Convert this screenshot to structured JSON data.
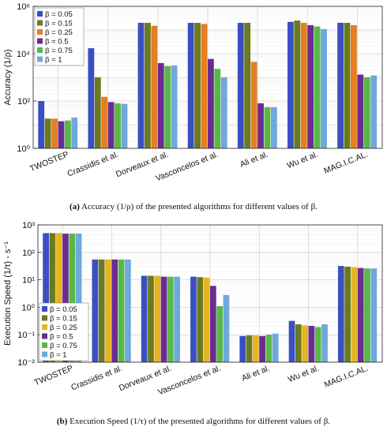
{
  "colors": [
    "#3a4fc2",
    "#6b7a1e",
    "#e67e22",
    "#e6b422",
    "#6a2c91",
    "#59b845",
    "#6fa8dc"
  ],
  "chart_data": [
    {
      "id": "a",
      "type": "bar",
      "log_y": true,
      "ylim": [
        1,
        1000000
      ],
      "ylabel": "Accuracy (1/ρ)",
      "yticks": [
        "10⁰",
        "10²",
        "10⁴",
        "10⁶"
      ],
      "ytick_values": [
        1,
        100,
        10000,
        1000000
      ],
      "categories": [
        "TWOSTEP",
        "Crassidis et al.",
        "Dorveaux et al.",
        "Vasconcelos et al.",
        "Ali et al.",
        "Wu et al.",
        "MAG.I.C.AL."
      ],
      "series": [
        {
          "name": "β = 0.05",
          "color_index": 0,
          "values": [
            100,
            17000,
            200000,
            200000,
            200000,
            220000,
            200000
          ]
        },
        {
          "name": "β = 0.15",
          "color_index": 1,
          "values": [
            18,
            1000,
            200000,
            200000,
            200000,
            250000,
            200000
          ]
        },
        {
          "name": "β = 0.25",
          "color_index": 2,
          "values": [
            18,
            150,
            150000,
            180000,
            4500,
            200000,
            160000
          ]
        },
        {
          "name": "β = 0.5",
          "color_index": 4,
          "values": [
            14,
            90,
            4000,
            6000,
            80,
            160000,
            1300
          ]
        },
        {
          "name": "β = 0.75",
          "color_index": 5,
          "values": [
            15,
            80,
            3000,
            2300,
            55,
            140000,
            1000
          ]
        },
        {
          "name": "β = 1",
          "color_index": 6,
          "values": [
            20,
            75,
            3200,
            1000,
            55,
            110000,
            1200
          ]
        }
      ],
      "legend": "top-left"
    },
    {
      "id": "b",
      "type": "bar",
      "log_y": true,
      "ylim": [
        0.01,
        1000
      ],
      "ylabel": "Execution Speed (1/τ) - s⁻¹",
      "yticks": [
        "10⁻²",
        "10⁻¹",
        "10⁰",
        "10¹",
        "10²",
        "10³"
      ],
      "ytick_values": [
        0.01,
        0.1,
        1,
        10,
        100,
        1000
      ],
      "categories": [
        "TWOSTEP",
        "Crassidis et al.",
        "Dorveaux et al.",
        "Vasconcelos et al.",
        "Ali et al.",
        "Wu et al.",
        "MAG.I.C.AL."
      ],
      "series": [
        {
          "name": "β = 0.05",
          "color_index": 0,
          "values": [
            500,
            55,
            14,
            13,
            0.09,
            0.32,
            32
          ]
        },
        {
          "name": "β = 0.15",
          "color_index": 1,
          "values": [
            500,
            55,
            14,
            12.5,
            0.095,
            0.24,
            30
          ]
        },
        {
          "name": "β = 0.25",
          "color_index": 3,
          "values": [
            500,
            55,
            14,
            12,
            0.095,
            0.22,
            29
          ]
        },
        {
          "name": "β = 0.5",
          "color_index": 4,
          "values": [
            480,
            55,
            13,
            6,
            0.09,
            0.21,
            27
          ]
        },
        {
          "name": "β = 0.75",
          "color_index": 5,
          "values": [
            480,
            55,
            13,
            1.1,
            0.1,
            0.19,
            26
          ]
        },
        {
          "name": "β = 1",
          "color_index": 6,
          "values": [
            480,
            55,
            13,
            2.8,
            0.11,
            0.24,
            26
          ]
        }
      ],
      "legend": "bottom-left"
    }
  ],
  "captions": {
    "a_tag": "(a)",
    "a_text": " Accuracy (1/ρ) of the presented algorithms for different values of β.",
    "b_tag": "(b)",
    "b_text": " Execution Speed (1/τ) of the presented algorithms for different values of β."
  }
}
